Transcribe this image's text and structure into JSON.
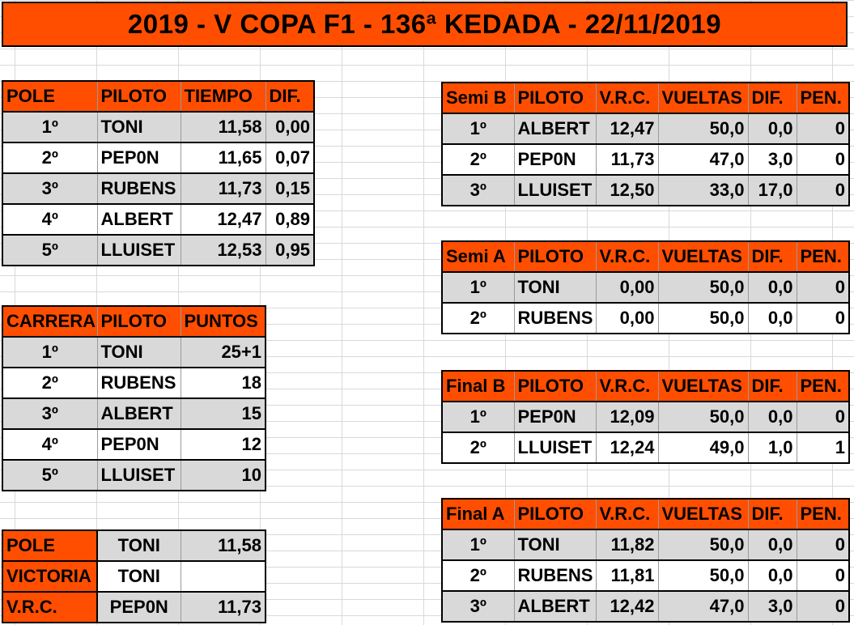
{
  "title": "2019 - V COPA F1 - 136ª KEDADA - 22/11/2019",
  "pole": {
    "headers": [
      "POLE",
      "PILOTO",
      "TIEMPO",
      "DIF."
    ],
    "rows": [
      [
        "1º",
        "TONI",
        "11,58",
        "0,00"
      ],
      [
        "2º",
        "PEP0N",
        "11,65",
        "0,07"
      ],
      [
        "3º",
        "RUBENS",
        "11,73",
        "0,15"
      ],
      [
        "4º",
        "ALBERT",
        "12,47",
        "0,89"
      ],
      [
        "5º",
        "LLUISET",
        "12,53",
        "0,95"
      ]
    ]
  },
  "carrera": {
    "headers": [
      "CARRERA",
      "PILOTO",
      "PUNTOS"
    ],
    "rows": [
      [
        "1º",
        "TONI",
        "25+1"
      ],
      [
        "2º",
        "RUBENS",
        "18"
      ],
      [
        "3º",
        "ALBERT",
        "15"
      ],
      [
        "4º",
        "PEP0N",
        "12"
      ],
      [
        "5º",
        "LLUISET",
        "10"
      ]
    ]
  },
  "summary": {
    "rows": [
      [
        "POLE",
        "TONI",
        "11,58"
      ],
      [
        "VICTORIA",
        "TONI",
        ""
      ],
      [
        "V.R.C.",
        "PEP0N",
        "11,73"
      ]
    ]
  },
  "semi_b": {
    "headers": [
      "Semi B",
      "PILOTO",
      "V.R.C.",
      "VUELTAS",
      "DIF.",
      "PEN."
    ],
    "rows": [
      [
        "1º",
        "ALBERT",
        "12,47",
        "50,0",
        "0,0",
        "0"
      ],
      [
        "2º",
        "PEP0N",
        "11,73",
        "47,0",
        "3,0",
        "0"
      ],
      [
        "3º",
        "LLUISET",
        "12,50",
        "33,0",
        "17,0",
        "0"
      ]
    ]
  },
  "semi_a": {
    "headers": [
      "Semi A",
      "PILOTO",
      "V.R.C.",
      "VUELTAS",
      "DIF.",
      "PEN."
    ],
    "rows": [
      [
        "1º",
        "TONI",
        "0,00",
        "50,0",
        "0,0",
        "0"
      ],
      [
        "2º",
        "RUBENS",
        "0,00",
        "50,0",
        "0,0",
        "0"
      ]
    ]
  },
  "final_b": {
    "headers": [
      "Final B",
      "PILOTO",
      "V.R.C.",
      "VUELTAS",
      "DIF.",
      "PEN."
    ],
    "rows": [
      [
        "1º",
        "PEP0N",
        "12,09",
        "50,0",
        "0,0",
        "0"
      ],
      [
        "2º",
        "LLUISET",
        "12,24",
        "49,0",
        "1,0",
        "1"
      ]
    ]
  },
  "final_a": {
    "headers": [
      "Final A",
      "PILOTO",
      "V.R.C.",
      "VUELTAS",
      "DIF.",
      "PEN."
    ],
    "rows": [
      [
        "1º",
        "TONI",
        "11,82",
        "50,0",
        "0,0",
        "0"
      ],
      [
        "2º",
        "RUBENS",
        "11,81",
        "50,0",
        "0,0",
        "0"
      ],
      [
        "3º",
        "ALBERT",
        "12,42",
        "47,0",
        "3,0",
        "0"
      ]
    ]
  },
  "colors": {
    "header_orange": "#ff4e00",
    "row_gray": "#d9d9d9",
    "grid_line": "#d9d9d9"
  }
}
